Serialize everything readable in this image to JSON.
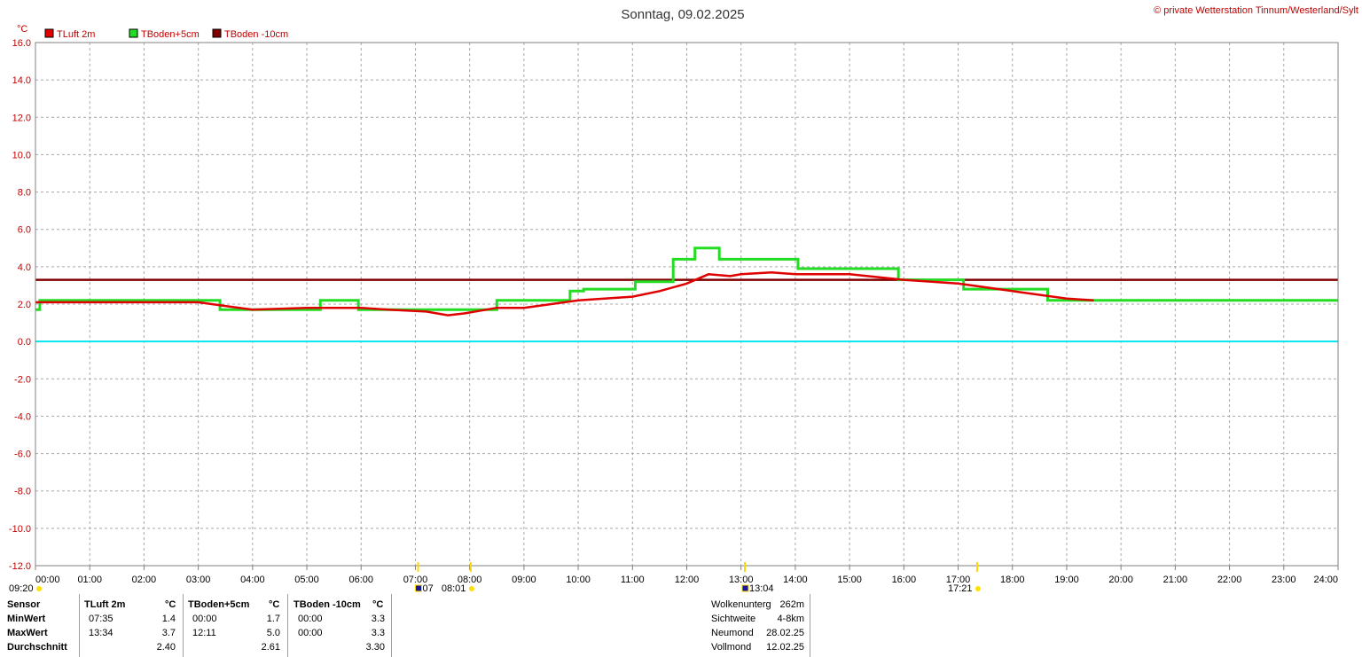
{
  "header": {
    "title": "Sonntag, 09.02.2025",
    "copyright": "© private Wetterstation Tinnum/Westerland/Sylt",
    "unit": "°C"
  },
  "legend": [
    {
      "label": "TLuft 2m",
      "color": "#e00000"
    },
    {
      "label": "TBoden+5cm",
      "color": "#22dd22"
    },
    {
      "label": "TBoden -10cm",
      "color": "#800000"
    }
  ],
  "chart_data": {
    "type": "line",
    "x_unit": "hour",
    "xlim": [
      0,
      24
    ],
    "ylim": [
      -12,
      16
    ],
    "y_ticks": [
      "16.0",
      "14.0",
      "12.0",
      "10.0",
      "8.0",
      "6.0",
      "4.0",
      "2.0",
      "0.0",
      "-2.0",
      "-4.0",
      "-6.0",
      "-8.0",
      "-10.0",
      "-12.0"
    ],
    "x_ticks": [
      "00:00",
      "01:00",
      "02:00",
      "03:00",
      "04:00",
      "05:00",
      "06:00",
      "07:00",
      "08:00",
      "09:00",
      "10:00",
      "11:00",
      "12:00",
      "13:00",
      "14:00",
      "15:00",
      "16:00",
      "17:00",
      "18:00",
      "19:00",
      "20:00",
      "21:00",
      "22:00",
      "23:00",
      "24:00"
    ],
    "grid": true,
    "reference_line": {
      "y": 0,
      "color": "#00e5ee"
    },
    "series": [
      {
        "name": "TLuft 2m",
        "color": "#e00000",
        "x": [
          0,
          1,
          2,
          3,
          3.5,
          4,
          5,
          6,
          6.5,
          7.2,
          7.6,
          7.9,
          8.5,
          9,
          9.5,
          10,
          11,
          11.5,
          12,
          12.4,
          12.8,
          13,
          13.56,
          14,
          15,
          16,
          17,
          18,
          19,
          19.5
        ],
        "y": [
          2.1,
          2.1,
          2.1,
          2.1,
          1.9,
          1.7,
          1.8,
          1.8,
          1.7,
          1.6,
          1.4,
          1.5,
          1.8,
          1.8,
          2.0,
          2.2,
          2.4,
          2.7,
          3.1,
          3.6,
          3.5,
          3.6,
          3.7,
          3.6,
          3.6,
          3.3,
          3.1,
          2.7,
          2.3,
          2.2
        ]
      },
      {
        "name": "TBoden+5cm",
        "color": "#22dd22",
        "x": [
          0,
          0.08,
          0.08,
          3.4,
          3.4,
          5.25,
          5.25,
          5.95,
          5.95,
          8.5,
          8.5,
          9.85,
          9.85,
          10.1,
          10.1,
          11.05,
          11.05,
          11.75,
          11.75,
          12.15,
          12.15,
          12.6,
          12.6,
          14.05,
          14.05,
          15.9,
          15.9,
          17.1,
          17.1,
          18.65,
          18.65,
          24
        ],
        "y": [
          1.7,
          1.7,
          2.2,
          2.2,
          1.7,
          1.7,
          2.2,
          2.2,
          1.7,
          1.7,
          2.2,
          2.2,
          2.7,
          2.7,
          2.8,
          2.8,
          3.2,
          3.2,
          4.4,
          4.4,
          5.0,
          5.0,
          4.4,
          4.4,
          3.9,
          3.9,
          3.3,
          3.3,
          2.8,
          2.8,
          2.2,
          2.2
        ]
      },
      {
        "name": "TBoden -10cm",
        "color": "#800000",
        "x": [
          0,
          24
        ],
        "y": [
          3.3,
          3.3
        ]
      }
    ]
  },
  "astro": [
    {
      "text": "09:20",
      "hour": 0
    },
    {
      "text": "07",
      "hour": 7.05
    },
    {
      "text": "08:01",
      "hour": 8.02
    },
    {
      "text": "13:04",
      "hour": 13.07
    },
    {
      "text": "17:21",
      "hour": 17.35
    }
  ],
  "table": {
    "col_sensor": "Sensor",
    "rows": [
      "MinWert",
      "MaxWert",
      "Durchschnitt"
    ],
    "sensors": [
      {
        "name": "TLuft 2m",
        "unit": "°C",
        "min_time": "07:35",
        "min": "1.4",
        "max_time": "13:34",
        "max": "3.7",
        "avg": "2.40"
      },
      {
        "name": "TBoden+5cm",
        "unit": "°C",
        "min_time": "00:00",
        "min": "1.7",
        "max_time": "12:11",
        "max": "5.0",
        "avg": "2.61"
      },
      {
        "name": "TBoden -10cm",
        "unit": "°C",
        "min_time": "00:00",
        "min": "3.3",
        "max_time": "00:00",
        "max": "3.3",
        "avg": "3.30"
      }
    ],
    "extra": [
      {
        "label": "Wolkenunterg",
        "value": "262m"
      },
      {
        "label": "Sichtweite",
        "value": "4-8km"
      },
      {
        "label": "Neumond",
        "value": "28.02.25"
      },
      {
        "label": "Vollmond",
        "value": "12.02.25"
      }
    ]
  }
}
